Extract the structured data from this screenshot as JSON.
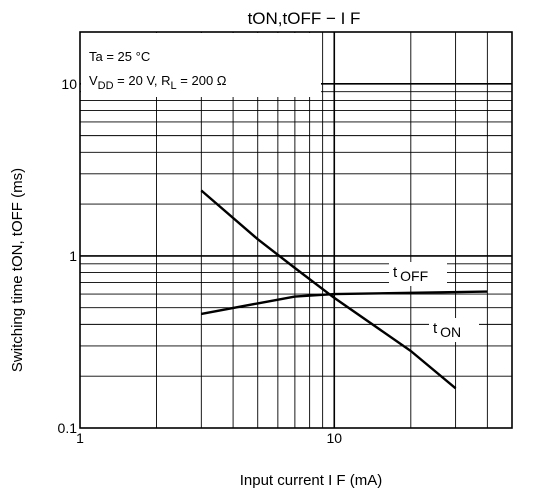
{
  "chart_data": {
    "type": "line",
    "title": "tON,tOFF − I F",
    "xlabel": "Input current   I F (mA)",
    "ylabel": "Switching time   tON, tOFF (ms)",
    "xscale": "log",
    "yscale": "log",
    "xlim": [
      1,
      50
    ],
    "ylim": [
      0.1,
      20
    ],
    "xticks": [
      {
        "value": 1,
        "label": "1"
      },
      {
        "value": 10,
        "label": "10"
      }
    ],
    "yticks": [
      {
        "value": 0.1,
        "label": "0.1"
      },
      {
        "value": 1,
        "label": "1"
      },
      {
        "value": 10,
        "label": "10"
      }
    ],
    "grid": true,
    "conditions": {
      "line1": "Ta = 25  °C",
      "line2_vdd": "V",
      "line2_vdd_sub": "DD",
      "line2_vdd_val": " = 20 V,   ",
      "line2_rl": "R",
      "line2_rl_sub": "L",
      "line2_rl_val": " = 200 Ω"
    },
    "series": [
      {
        "name": "t OFF",
        "label_main": "t",
        "label_sub": "OFF",
        "x": [
          3,
          5,
          7,
          10,
          20,
          40
        ],
        "y": [
          0.46,
          0.53,
          0.58,
          0.6,
          0.61,
          0.62
        ]
      },
      {
        "name": "t ON",
        "label_main": "t",
        "label_sub": "ON",
        "x": [
          3,
          5,
          7,
          10,
          20,
          30
        ],
        "y": [
          2.4,
          1.25,
          0.85,
          0.57,
          0.28,
          0.17
        ]
      }
    ],
    "line_color": "#000000",
    "grid_color": "#000000"
  }
}
